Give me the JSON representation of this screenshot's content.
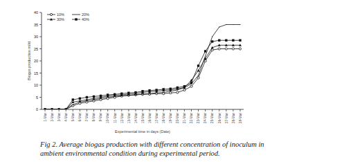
{
  "chart_data": {
    "type": "line",
    "caption": "Fig 2. Average biogas production with different concentration of inoculum in ambient environmental condition during experimental period.",
    "x_label": "Experimental time in days (Date)",
    "y_label": "Biogas production ml/d",
    "categories": [
      "1-Mar",
      "2-Mar",
      "3-Mar",
      "4-Mar",
      "5-Mar",
      "6-Mar",
      "7-Mar",
      "8-Mar",
      "9-Mar",
      "10-Mar",
      "11-Mar",
      "12-Mar",
      "13-Mar",
      "14-Mar",
      "15-Mar",
      "16-Mar",
      "17-Mar",
      "18-Mar",
      "19-Mar",
      "20-Mar",
      "21-Mar",
      "22-Mar",
      "23-Mar",
      "24-Mar",
      "25-Mar",
      "26-Mar",
      "27-Mar",
      "28-Mar",
      "29-Mar"
    ],
    "series": [
      {
        "name": "10%",
        "color": "#111111",
        "marker": "circle",
        "line_style": "solid",
        "values": [
          0,
          0,
          0,
          0,
          1.5,
          2.5,
          3,
          3.5,
          4,
          4.5,
          5,
          5.5,
          5.8,
          6,
          6.2,
          6.3,
          6.5,
          6.5,
          6.8,
          7,
          8,
          9.5,
          13,
          20,
          24.5,
          25,
          25,
          25,
          25
        ]
      },
      {
        "name": "20%",
        "color": "#111111",
        "marker": "none",
        "line_style": "solid",
        "values": [
          0,
          0,
          0,
          0,
          2,
          3,
          3.5,
          4,
          4.5,
          5,
          5.3,
          5.6,
          5.8,
          6,
          6.3,
          6.5,
          6.8,
          7,
          7.5,
          8,
          9,
          10.5,
          14,
          22,
          30,
          34,
          35,
          35,
          35
        ]
      },
      {
        "name": "30%",
        "color": "#111111",
        "marker": "triangle",
        "line_style": "solid",
        "values": [
          0,
          0,
          0,
          0,
          3,
          3.5,
          4,
          4.5,
          5,
          5.5,
          5.8,
          6,
          6.3,
          6.5,
          7,
          7.3,
          7.5,
          7.8,
          8,
          8.5,
          9,
          12,
          16,
          21,
          25.5,
          26.5,
          26.5,
          26.5,
          26.5
        ]
      },
      {
        "name": "40%",
        "color": "#111111",
        "marker": "square",
        "line_style": "solid",
        "values": [
          0,
          0,
          0,
          0,
          4,
          4.5,
          5,
          5.3,
          5.6,
          6,
          6.2,
          6.5,
          6.8,
          7,
          7.5,
          7.8,
          8,
          8.3,
          8.5,
          9,
          9.5,
          11,
          18,
          24,
          28,
          28.5,
          28.5,
          28.5,
          28.5
        ]
      }
    ],
    "ylim": [
      0,
      40
    ],
    "yticks": [
      0,
      5,
      10,
      15,
      20,
      25,
      30,
      35,
      40
    ],
    "grid": false,
    "legend": "upper left"
  }
}
